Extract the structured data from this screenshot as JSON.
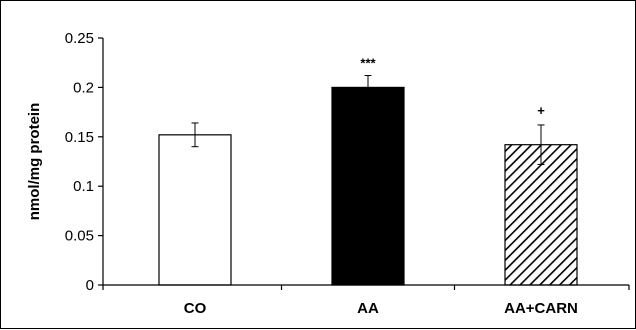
{
  "chart_data": {
    "type": "bar",
    "title": "",
    "xlabel": "",
    "ylabel": "nmol/mg protein",
    "ylim": [
      0,
      0.25
    ],
    "yticks": [
      "0",
      "0.05",
      "0.1",
      "0.15",
      "0.2",
      "0.25"
    ],
    "ytick_values": [
      0,
      0.05,
      0.1,
      0.15,
      0.2,
      0.25
    ],
    "grid": false,
    "categories": [
      "CO",
      "AA",
      "AA+CARN"
    ],
    "values": [
      0.152,
      0.2,
      0.142
    ],
    "errors": [
      0.012,
      0.012,
      0.02
    ],
    "significance": [
      "",
      "***",
      "+"
    ],
    "fills": [
      "white",
      "black",
      "hatched"
    ]
  },
  "colors": {
    "axis": "#000000",
    "bar_outline": "#000000",
    "bar_white": "#ffffff",
    "bar_black": "#000000",
    "hatch": "#000000"
  }
}
